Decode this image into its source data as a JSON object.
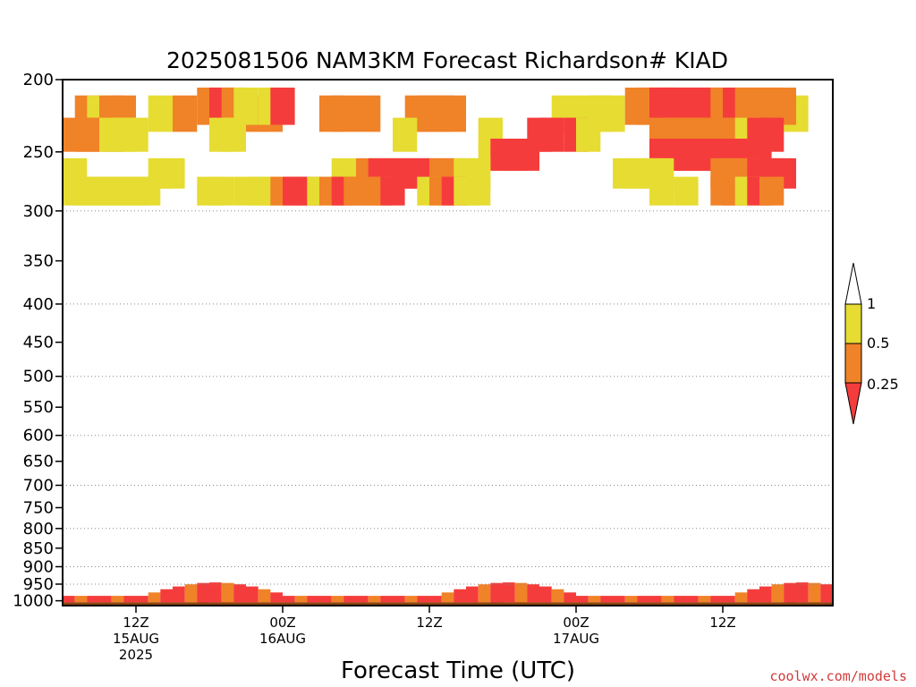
{
  "chart_data": {
    "type": "heatmap",
    "title": "2025081506 NAM3KM Forecast Richardson# KIAD",
    "xlabel": "Forecast Time (UTC)",
    "credit": "coolwx.com/models",
    "y_axis": {
      "scale": "log-pressure",
      "inverted": true,
      "ylim": [
        1015,
        200
      ],
      "tick_labels": [
        "200",
        "250",
        "300",
        "350",
        "400",
        "450",
        "500",
        "550",
        "600",
        "650",
        "700",
        "750",
        "800",
        "850",
        "900",
        "950",
        "1000"
      ],
      "dotted_gridlines": [
        300,
        400,
        500,
        600,
        700,
        800,
        900,
        950
      ]
    },
    "x_axis": {
      "forecast_hours": [
        0,
        63
      ],
      "ticks": [
        {
          "hour": 6,
          "label": "12Z",
          "date": "15AUG",
          "year": "2025"
        },
        {
          "hour": 18,
          "label": "00Z",
          "date": "16AUG",
          "year": ""
        },
        {
          "hour": 30,
          "label": "12Z",
          "date": "",
          "year": ""
        },
        {
          "hour": 42,
          "label": "00Z",
          "date": "17AUG",
          "year": ""
        },
        {
          "hour": 54,
          "label": "12Z",
          "date": "",
          "year": ""
        }
      ]
    },
    "legend": {
      "placement": "right",
      "labels": [
        "1",
        "0.5",
        "0.25"
      ],
      "colors": {
        "low": "#f53c3c",
        "mid": "#f08228",
        "high": "#e6dc32",
        "top": "#ffffff",
        "ground": "#8b4513"
      }
    },
    "classes": [
      "Ri < 0.25",
      "0.25-0.5",
      "0.5-1"
    ],
    "cells": [
      [
        1,
        210,
        0.5,
        2
      ],
      [
        2,
        210,
        1,
        2
      ],
      [
        3,
        210,
        0.5,
        2
      ],
      [
        4,
        210,
        0.5,
        2
      ],
      [
        7,
        210,
        1,
        2
      ],
      [
        9,
        210,
        0.5,
        2
      ],
      [
        15,
        210,
        0.5,
        2
      ],
      [
        16,
        210,
        0.5,
        2
      ],
      [
        21,
        210,
        0.5,
        2
      ],
      [
        22,
        210,
        0.5,
        2
      ],
      [
        24,
        210,
        0.5,
        2
      ],
      [
        28,
        210,
        0.5,
        2
      ],
      [
        29,
        210,
        0.5,
        2
      ],
      [
        30,
        210,
        0.5,
        2
      ],
      [
        31,
        210,
        0.5,
        2
      ],
      [
        40,
        210,
        1,
        2
      ],
      [
        42,
        210,
        1,
        2
      ],
      [
        43,
        210,
        1,
        2
      ],
      [
        44,
        210,
        1,
        2
      ],
      [
        48,
        210,
        0.5,
        1
      ],
      [
        51,
        210,
        1,
        2
      ],
      [
        53,
        210,
        1,
        2
      ],
      [
        54,
        210,
        1,
        2
      ],
      [
        59,
        210,
        1,
        2
      ],
      [
        11,
        205,
        0.5,
        2
      ],
      [
        12,
        205,
        0.25,
        2
      ],
      [
        13,
        205,
        0.5,
        2
      ],
      [
        14,
        205,
        1,
        2
      ],
      [
        16,
        205,
        1,
        2
      ],
      [
        17,
        205,
        0.25,
        2
      ],
      [
        46,
        205,
        0.5,
        3
      ],
      [
        47,
        205,
        0.5,
        3
      ],
      [
        48,
        205,
        0.25,
        2
      ],
      [
        49,
        205,
        0.25,
        2
      ],
      [
        50,
        205,
        0.25,
        2
      ],
      [
        51,
        205,
        0.25,
        2
      ],
      [
        52,
        205,
        0.25,
        2
      ],
      [
        53,
        205,
        0.5,
        2
      ],
      [
        54,
        205,
        0.25,
        2
      ],
      [
        55,
        205,
        0.5,
        2
      ],
      [
        56,
        205,
        0.5,
        2
      ],
      [
        57,
        205,
        0.5,
        2
      ],
      [
        58,
        205,
        0.5,
        2
      ],
      [
        0,
        225,
        0.5,
        2
      ],
      [
        1,
        225,
        0.5,
        2
      ],
      [
        2,
        225,
        0.5,
        3
      ],
      [
        3,
        225,
        1,
        3
      ],
      [
        4,
        225,
        1,
        3
      ],
      [
        12,
        225,
        1,
        2
      ],
      [
        13,
        225,
        1,
        2
      ],
      [
        27,
        225,
        1,
        2
      ],
      [
        34,
        225,
        1,
        2
      ],
      [
        38,
        225,
        0.25,
        2
      ],
      [
        39,
        225,
        0.25,
        2
      ],
      [
        41,
        225,
        0.25,
        2
      ],
      [
        42,
        225,
        1,
        2
      ],
      [
        48,
        225,
        0.5,
        2
      ],
      [
        49,
        225,
        0.5,
        2
      ],
      [
        50,
        225,
        0.5,
        2
      ],
      [
        51,
        225,
        0.5,
        2
      ],
      [
        52,
        225,
        0.5,
        2
      ],
      [
        53,
        225,
        0.5,
        2
      ],
      [
        54,
        225,
        0.5,
        2
      ],
      [
        55,
        225,
        1,
        2
      ],
      [
        56,
        225,
        0.25,
        2
      ],
      [
        57,
        225,
        0.25,
        2
      ],
      [
        34,
        240,
        1,
        2
      ],
      [
        35,
        240,
        0.25,
        2
      ],
      [
        36,
        240,
        0.25,
        2
      ],
      [
        37,
        240,
        0.25,
        2
      ],
      [
        48,
        240,
        0.25,
        2
      ],
      [
        49,
        240,
        0.25,
        2
      ],
      [
        50,
        240,
        0.25,
        2
      ],
      [
        51,
        240,
        0.25,
        2
      ],
      [
        52,
        240,
        0.25,
        2
      ],
      [
        53,
        240,
        0.25,
        2
      ],
      [
        54,
        240,
        0.25,
        2
      ],
      [
        55,
        240,
        0.25,
        2
      ],
      [
        56,
        240,
        0.25,
        2
      ],
      [
        0,
        255,
        1,
        2
      ],
      [
        7,
        255,
        1,
        2
      ],
      [
        8,
        255,
        1,
        2
      ],
      [
        22,
        255,
        1,
        2
      ],
      [
        24,
        255,
        0.5,
        2
      ],
      [
        25,
        255,
        0.25,
        2
      ],
      [
        26,
        255,
        0.25,
        2
      ],
      [
        27,
        255,
        0.25,
        2
      ],
      [
        28,
        255,
        0.25,
        2
      ],
      [
        29,
        255,
        0.25,
        2
      ],
      [
        30,
        255,
        0.5,
        2
      ],
      [
        31,
        255,
        0.5,
        2
      ],
      [
        32,
        255,
        1,
        2
      ],
      [
        33,
        255,
        1,
        2
      ],
      [
        45,
        255,
        1,
        2
      ],
      [
        46,
        255,
        1,
        2
      ],
      [
        47,
        255,
        1,
        2
      ],
      [
        48,
        255,
        1,
        2
      ],
      [
        53,
        255,
        0.5,
        2
      ],
      [
        54,
        255,
        0.5,
        2
      ],
      [
        55,
        255,
        0.5,
        2
      ],
      [
        56,
        255,
        0.25,
        2
      ],
      [
        57,
        255,
        0.25,
        2
      ],
      [
        58,
        255,
        0.25,
        2
      ],
      [
        0,
        270,
        1,
        2
      ],
      [
        1,
        270,
        1,
        2
      ],
      [
        2,
        270,
        1,
        2
      ],
      [
        3,
        270,
        1,
        2
      ],
      [
        4,
        270,
        1,
        2
      ],
      [
        5,
        270,
        1,
        2
      ],
      [
        6,
        270,
        1,
        2
      ],
      [
        11,
        270,
        1,
        2
      ],
      [
        12,
        270,
        1,
        2
      ],
      [
        14,
        270,
        1,
        2
      ],
      [
        15,
        270,
        1,
        2
      ],
      [
        16,
        270,
        1,
        2
      ],
      [
        17,
        270,
        0.5,
        2
      ],
      [
        18,
        270,
        0.25,
        2
      ],
      [
        19,
        270,
        0.25,
        2
      ],
      [
        20,
        270,
        1,
        2
      ],
      [
        21,
        270,
        0.5,
        2
      ],
      [
        22,
        270,
        0.25,
        2
      ],
      [
        23,
        270,
        0.5,
        2
      ],
      [
        24,
        270,
        0.5,
        2
      ],
      [
        25,
        270,
        0.5,
        2
      ],
      [
        26,
        270,
        0.25,
        2
      ],
      [
        29,
        270,
        1,
        2
      ],
      [
        30,
        270,
        0.5,
        2
      ],
      [
        31,
        270,
        0.25,
        2
      ],
      [
        32,
        270,
        1,
        2
      ],
      [
        33,
        270,
        1,
        2
      ],
      [
        48,
        270,
        1,
        2
      ],
      [
        50,
        270,
        1,
        2
      ],
      [
        53,
        270,
        0.5,
        2
      ],
      [
        54,
        270,
        0.5,
        2
      ],
      [
        55,
        270,
        1,
        2
      ],
      [
        56,
        270,
        0.25,
        2
      ],
      [
        57,
        270,
        0.5,
        2
      ]
    ]
  }
}
